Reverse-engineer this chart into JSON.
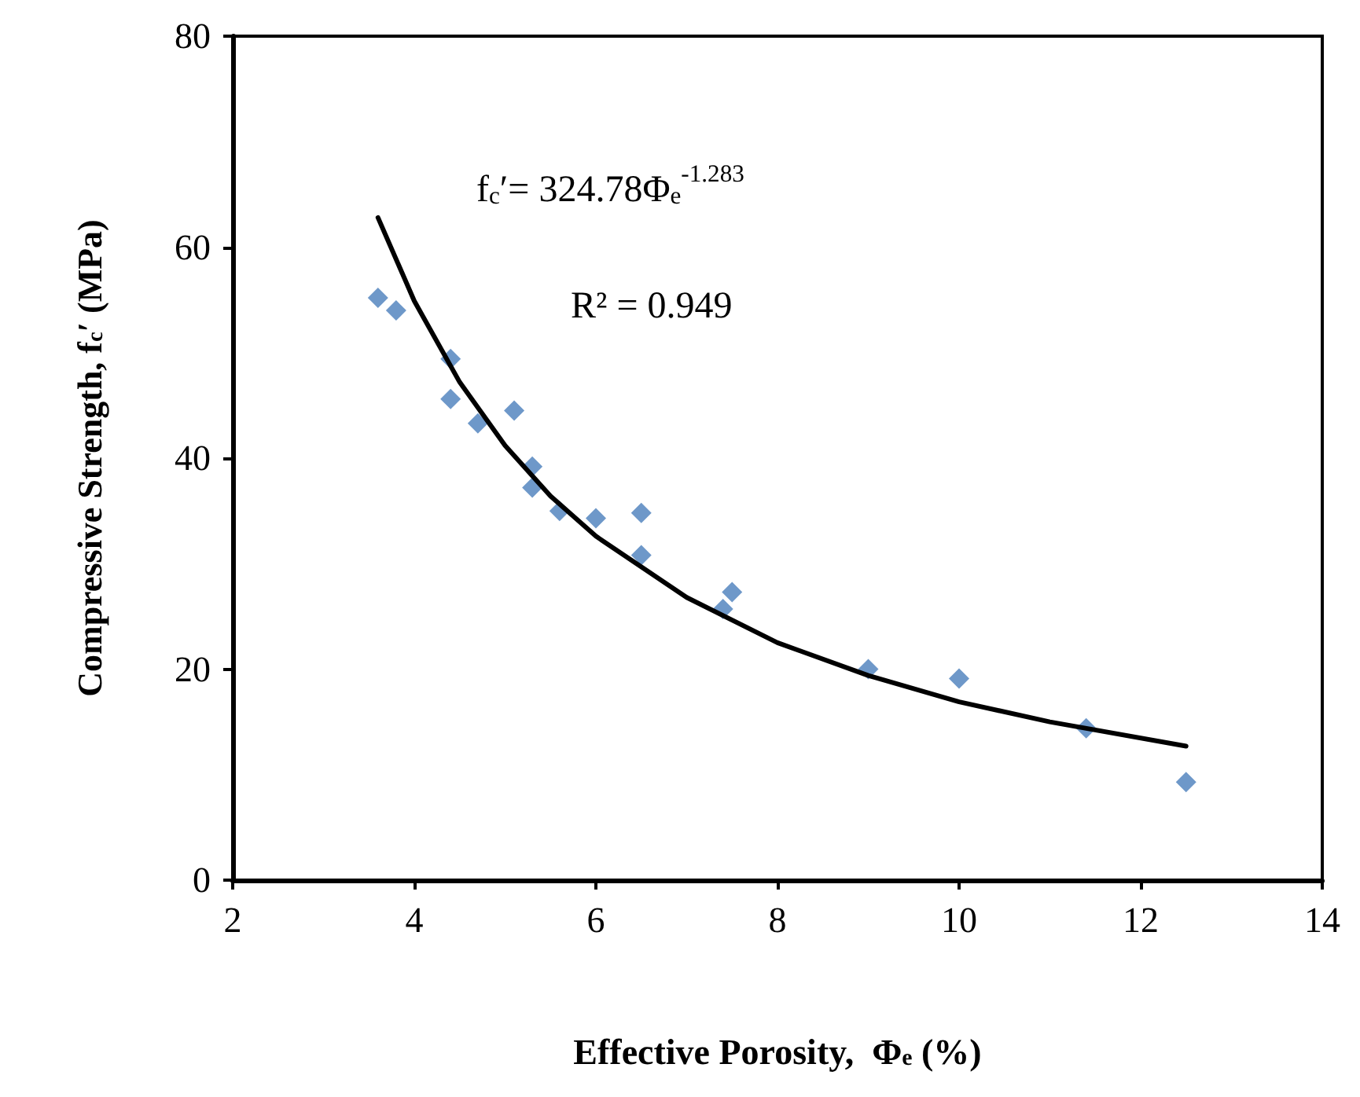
{
  "chart_data": {
    "type": "scatter",
    "xlabel": "Effective Porosity,  Φ$_{e}$ (%)",
    "ylabel": "Compressive Strength, f$_{c}$′ (MPa)",
    "annotations": [
      "f$_{c}$′= 324.78Φ$_{e}$$^{-1.283}$",
      "R² = 0.949"
    ],
    "series": [
      {
        "marker": "diamond",
        "color": "#4a7ebb",
        "x": [
          3.6,
          3.8,
          4.4,
          4.4,
          4.7,
          5.1,
          5.3,
          5.3,
          5.6,
          6.0,
          6.5,
          6.5,
          7.5,
          7.4,
          9.0,
          10.0,
          11.4,
          12.5
        ],
        "values": [
          55.2,
          54.0,
          49.4,
          45.6,
          43.3,
          44.5,
          39.2,
          37.2,
          35.0,
          34.3,
          34.8,
          30.8,
          27.3,
          25.7,
          20.0,
          19.1,
          14.4,
          9.3
        ]
      },
      {
        "type": "line",
        "marker": "none",
        "color": "#000000",
        "x": [
          3.6,
          4,
          4.5,
          5,
          5.5,
          6,
          7,
          8,
          9,
          10,
          11,
          12.5
        ],
        "values": [
          62.8,
          54.9,
          47.2,
          41.2,
          36.4,
          32.6,
          26.8,
          22.5,
          19.4,
          16.9,
          15.0,
          12.7
        ]
      }
    ],
    "xlim": [
      2,
      14
    ],
    "xticks": [
      2,
      4,
      6,
      8,
      10,
      12,
      14
    ],
    "ylim": [
      0,
      80
    ],
    "yticks": [
      0,
      20,
      40,
      60,
      80
    ],
    "grid": false
  }
}
